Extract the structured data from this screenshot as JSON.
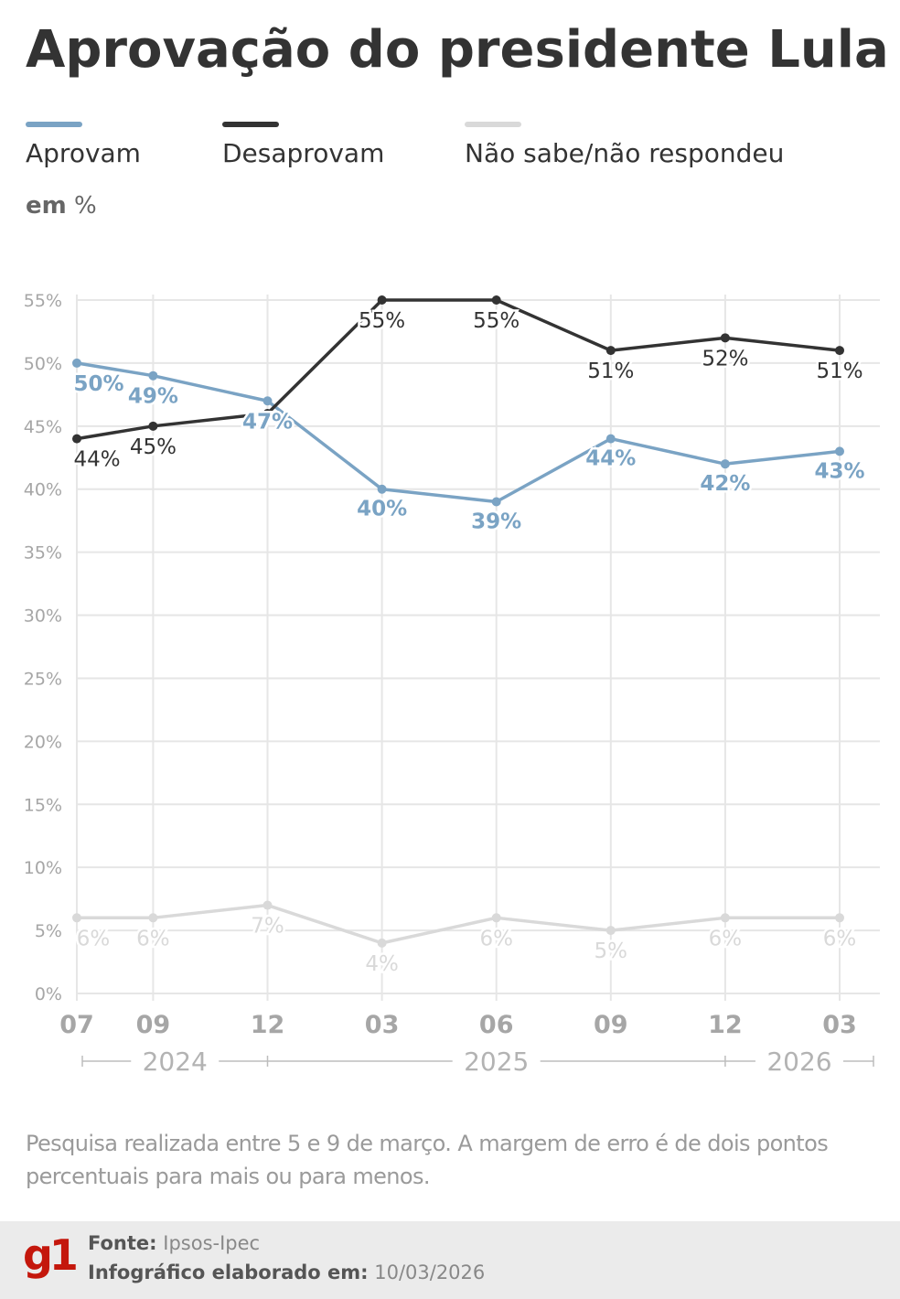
{
  "title": "Aprovação do presidente Lula",
  "unit_label": "em",
  "unit_symbol": "%",
  "legend": [
    {
      "label": "Aprovam",
      "color": "#7aa3c4"
    },
    {
      "label": "Desaprovam",
      "color": "#333333"
    },
    {
      "label": "Não sabe/não respondeu",
      "color": "#d9d9d9"
    }
  ],
  "chart_data": {
    "type": "line",
    "title": "Aprovação do presidente Lula",
    "ylabel": "em %",
    "xlabel": "",
    "ylim": [
      0,
      55
    ],
    "y_ticks": [
      0,
      5,
      10,
      15,
      20,
      25,
      30,
      35,
      40,
      45,
      50,
      55
    ],
    "y_tick_labels": [
      "0%",
      "5%",
      "10%",
      "15%",
      "20%",
      "25%",
      "30%",
      "35%",
      "40%",
      "45%",
      "50%",
      "55%"
    ],
    "grid": true,
    "categories": [
      "07",
      "09",
      "12",
      "03",
      "06",
      "09",
      "12",
      "03"
    ],
    "x_positions": [
      0,
      2,
      5,
      8,
      11,
      14,
      17,
      20
    ],
    "x_span": [
      0,
      21
    ],
    "years": [
      {
        "label": "2024",
        "start": -0.1,
        "end": 5
      },
      {
        "label": "2025",
        "start": 5,
        "end": 17
      },
      {
        "label": "2026",
        "start": 17,
        "end": 21
      }
    ],
    "series": [
      {
        "name": "Aprovam",
        "color": "#7aa3c4",
        "values": [
          50,
          49,
          47,
          40,
          39,
          44,
          42,
          43
        ],
        "labels": [
          "50%",
          "49%",
          "47%",
          "40%",
          "39%",
          "44%",
          "42%",
          "43%"
        ]
      },
      {
        "name": "Desaprovam",
        "color": "#333333",
        "values": [
          44,
          45,
          46,
          55,
          55,
          51,
          52,
          51
        ],
        "labels": [
          "44%",
          "45%",
          "",
          "55%",
          "55%",
          "51%",
          "52%",
          "51%"
        ]
      },
      {
        "name": "Não sabe/não respondeu",
        "color": "#d9d9d9",
        "values": [
          6,
          6,
          7,
          4,
          6,
          5,
          6,
          6
        ],
        "labels": [
          "6%",
          "6%",
          "7%",
          "4%",
          "6%",
          "5%",
          "6%",
          "6%"
        ]
      }
    ]
  },
  "note": "Pesquisa realizada entre 5 e 9 de março. A margem de erro é de dois pontos percentuais para mais ou para menos.",
  "footer": {
    "logo": "g1",
    "source_label": "Fonte:",
    "source_value": "Ipsos-Ipec",
    "created_label": "Infográfico elaborado em:",
    "created_value": "10/03/2026"
  }
}
